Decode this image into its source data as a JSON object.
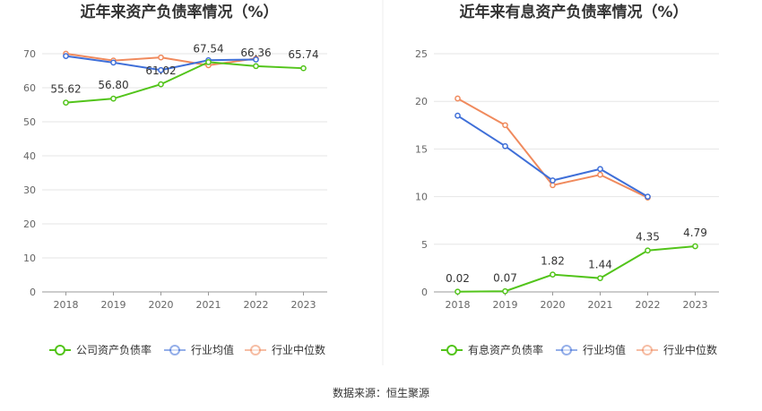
{
  "source_text": "数据来源：恒生聚源",
  "chart_data": [
    {
      "type": "line",
      "title": "近年来资产负债率情况（%）",
      "categories": [
        "2018",
        "2019",
        "2020",
        "2021",
        "2022",
        "2023"
      ],
      "ylim": [
        0,
        70
      ],
      "yticks": [
        0,
        10,
        20,
        30,
        40,
        50,
        60,
        70
      ],
      "series": [
        {
          "name": "公司资产负债率",
          "color": "#52c41a",
          "values": [
            55.62,
            56.8,
            61.02,
            67.54,
            66.36,
            65.74
          ],
          "labels": [
            "55.62",
            "56.80",
            "61.02",
            "67.54",
            "66.36",
            "65.74"
          ]
        },
        {
          "name": "行业均值",
          "color": "#3f6fd8",
          "values": [
            69.3,
            67.4,
            65.2,
            68.1,
            68.3,
            null
          ]
        },
        {
          "name": "行业中位数",
          "color": "#f08a5d",
          "values": [
            70.0,
            68.0,
            68.9,
            66.6,
            68.6,
            null
          ]
        }
      ],
      "legend_position": "bottom",
      "grid": true
    },
    {
      "type": "line",
      "title": "近年来有息资产负债率情况（%）",
      "categories": [
        "2018",
        "2019",
        "2020",
        "2021",
        "2022",
        "2023"
      ],
      "ylim": [
        0,
        25
      ],
      "yticks": [
        0,
        5,
        10,
        15,
        20,
        25
      ],
      "series": [
        {
          "name": "有息资产负债率",
          "color": "#52c41a",
          "values": [
            0.02,
            0.07,
            1.82,
            1.44,
            4.35,
            4.79
          ],
          "labels": [
            "0.02",
            "0.07",
            "1.82",
            "1.44",
            "4.35",
            "4.79"
          ]
        },
        {
          "name": "行业均值",
          "color": "#3f6fd8",
          "values": [
            18.5,
            15.3,
            11.7,
            12.9,
            10.0,
            null
          ]
        },
        {
          "name": "行业中位数",
          "color": "#f08a5d",
          "values": [
            20.3,
            17.5,
            11.2,
            12.3,
            9.9,
            null
          ]
        }
      ],
      "legend_position": "bottom",
      "grid": true
    }
  ]
}
